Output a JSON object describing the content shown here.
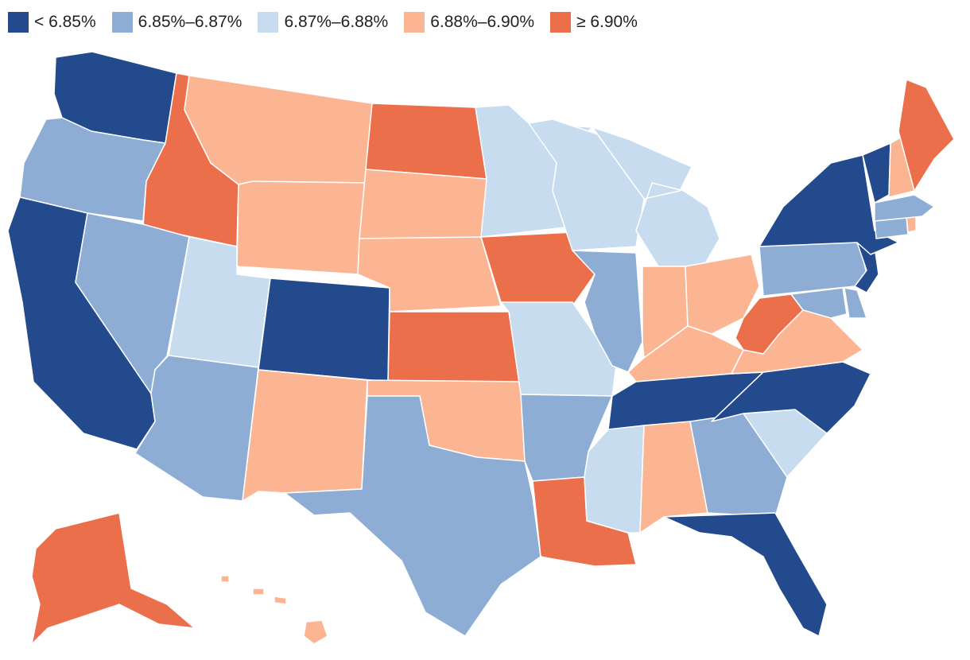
{
  "legend": [
    {
      "label": "< 6.85%",
      "color": "#234a8c"
    },
    {
      "label": "6.85%–6.87%",
      "color": "#8dadd5"
    },
    {
      "label": "6.87%–6.88%",
      "color": "#c7dcee"
    },
    {
      "label": "6.88%–6.90%",
      "color": "#fbb593"
    },
    {
      "label": "≥ 6.90%",
      "color": "#ec6f4c"
    }
  ],
  "chart_data": {
    "type": "choropleth",
    "title": "",
    "bins": [
      "< 6.85%",
      "6.85%–6.87%",
      "6.87%–6.88%",
      "6.88%–6.90%",
      "≥ 6.90%"
    ],
    "states": {
      "WA": 0,
      "CA": 0,
      "CO": 0,
      "TN": 0,
      "NC": 0,
      "FL": 0,
      "NY": 0,
      "VT": 0,
      "NJ": 0,
      "OR": 1,
      "NV": 1,
      "AZ": 1,
      "TX": 1,
      "AR": 1,
      "IL": 1,
      "GA": 1,
      "PA": 1,
      "MA": 1,
      "CT": 1,
      "MD": 1,
      "DE": 1,
      "UT": 2,
      "MN": 2,
      "WI": 2,
      "MI": 2,
      "MO": 2,
      "MS": 2,
      "SC": 2,
      "MT": 3,
      "WY": 3,
      "SD": 3,
      "NE": 3,
      "NM": 3,
      "OK": 3,
      "AL": 3,
      "IN": 3,
      "OH": 3,
      "KY": 3,
      "VA": 3,
      "NH": 3,
      "RI": 3,
      "HI": 3,
      "ID": 4,
      "ND": 4,
      "KS": 4,
      "IA": 4,
      "LA": 4,
      "WV": 4,
      "ME": 4,
      "AK": 4
    }
  }
}
